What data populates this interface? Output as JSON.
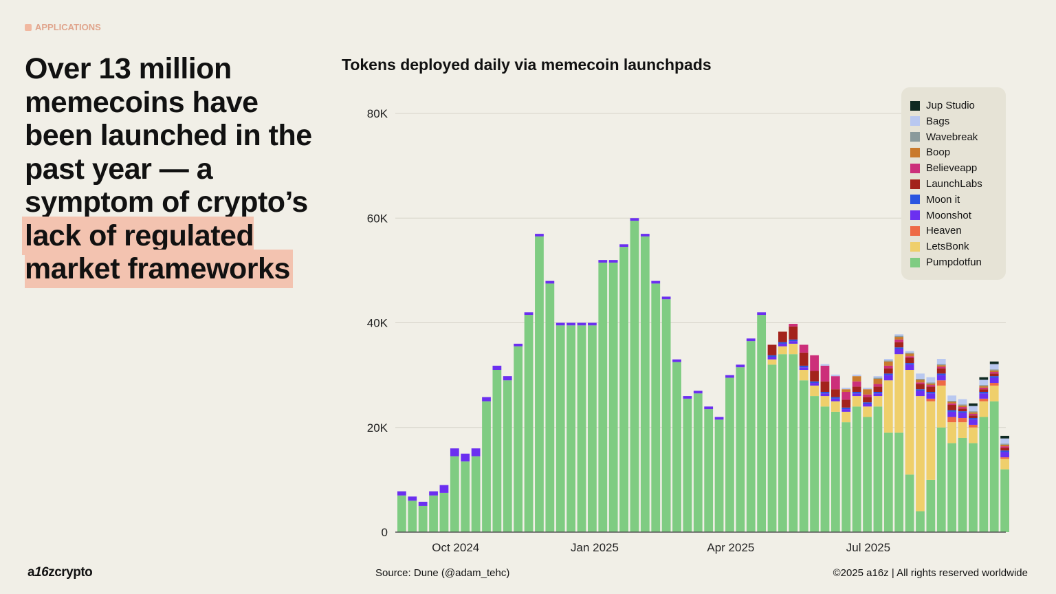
{
  "section_label": "APPLICATIONS",
  "headline": {
    "plain": "Over 13 million memecoins have been launched in the past year — a symptom of crypto’s ",
    "highlight": "lack of regulated market frameworks"
  },
  "footer": {
    "source": "Source: Dune (@adam_tehc)",
    "copyright": "©2025 a16z | All rights reserved worldwide",
    "logo": "a16zcrypto"
  },
  "chart_data": {
    "type": "bar",
    "stacked": true,
    "granularity": "weekly (approximate)",
    "title": "Tokens deployed daily via memecoin launchpads",
    "xlabel": "",
    "ylabel": "",
    "ylim": [
      0,
      80000
    ],
    "yticks": [
      0,
      20000,
      40000,
      60000,
      80000
    ],
    "ytick_labels": [
      "0",
      "20K",
      "40K",
      "60K",
      "80K"
    ],
    "xticks": [
      "2024-10-01",
      "2025-01-01",
      "2025-04-01",
      "2025-07-01"
    ],
    "xtick_labels": [
      "Oct 2024",
      "Jan 2025",
      "Apr 2025",
      "Jul 2025"
    ],
    "xlim": [
      "2024-08-23",
      "2025-09-30"
    ],
    "grid": "horizontal",
    "legend_position": "top-right",
    "x": [
      "2024-08-23",
      "2024-08-30",
      "2024-09-06",
      "2024-09-13",
      "2024-09-20",
      "2024-09-27",
      "2024-10-04",
      "2024-10-11",
      "2024-10-18",
      "2024-10-25",
      "2024-11-01",
      "2024-11-08",
      "2024-11-15",
      "2024-11-22",
      "2024-11-29",
      "2024-12-06",
      "2024-12-13",
      "2024-12-20",
      "2024-12-27",
      "2025-01-03",
      "2025-01-10",
      "2025-01-17",
      "2025-01-24",
      "2025-01-31",
      "2025-02-07",
      "2025-02-14",
      "2025-02-21",
      "2025-02-28",
      "2025-03-07",
      "2025-03-14",
      "2025-03-21",
      "2025-03-28",
      "2025-04-04",
      "2025-04-11",
      "2025-04-18",
      "2025-04-25",
      "2025-05-02",
      "2025-05-09",
      "2025-05-16",
      "2025-05-23",
      "2025-05-30",
      "2025-06-06",
      "2025-06-13",
      "2025-06-20",
      "2025-06-27",
      "2025-07-04",
      "2025-07-11",
      "2025-07-18",
      "2025-07-25",
      "2025-08-01",
      "2025-08-08",
      "2025-08-15",
      "2025-08-22",
      "2025-08-29",
      "2025-09-05",
      "2025-09-12",
      "2025-09-19",
      "2025-09-26"
    ],
    "units": "thousands of tokens",
    "series": [
      {
        "name": "Pumpdotfun",
        "color": "#7fcc82",
        "values": [
          7,
          6,
          5,
          7,
          7.5,
          14.5,
          13.5,
          14.5,
          25,
          31,
          29,
          35.5,
          41.5,
          56.5,
          47.5,
          39.5,
          39.5,
          39.5,
          39.5,
          51.5,
          51.5,
          54.5,
          59.5,
          56.5,
          47.5,
          44.5,
          32.5,
          25.5,
          26.5,
          23.5,
          21.5,
          29.5,
          31.5,
          36.5,
          41.5,
          32,
          34,
          34,
          29,
          26,
          24,
          23,
          21,
          24,
          22,
          24,
          19,
          19,
          11,
          4,
          10,
          20,
          17,
          18,
          17,
          22,
          25,
          12
        ]
      },
      {
        "name": "LetsBonk",
        "color": "#efcf6b",
        "values": [
          0,
          0,
          0,
          0,
          0,
          0,
          0,
          0,
          0,
          0,
          0,
          0,
          0,
          0,
          0,
          0,
          0,
          0,
          0,
          0,
          0,
          0,
          0,
          0,
          0,
          0,
          0,
          0,
          0,
          0,
          0,
          0,
          0,
          0,
          0,
          1,
          1.5,
          2,
          2,
          2,
          2,
          2,
          2,
          2,
          2,
          2,
          10,
          15,
          20,
          22,
          15,
          8,
          4,
          3,
          3,
          3,
          3,
          2
        ]
      },
      {
        "name": "Heaven",
        "color": "#ee6a45",
        "values": [
          0,
          0,
          0,
          0,
          0,
          0,
          0,
          0,
          0,
          0,
          0,
          0,
          0,
          0,
          0,
          0,
          0,
          0,
          0,
          0,
          0,
          0,
          0,
          0,
          0,
          0,
          0,
          0,
          0,
          0,
          0,
          0,
          0,
          0,
          0,
          0,
          0,
          0,
          0,
          0,
          0,
          0,
          0,
          0,
          0,
          0,
          0,
          0,
          0,
          0,
          0.5,
          1,
          1,
          0.8,
          0.5,
          0.5,
          0.5,
          0.3
        ]
      },
      {
        "name": "Moonshot",
        "color": "#6b2ff0",
        "values": [
          0.8,
          0.8,
          0.8,
          0.8,
          1.5,
          1.5,
          1.5,
          1.5,
          0.8,
          0.8,
          0.8,
          0.5,
          0.5,
          0.5,
          0.5,
          0.5,
          0.5,
          0.5,
          0.5,
          0.5,
          0.5,
          0.5,
          0.5,
          0.5,
          0.5,
          0.5,
          0.5,
          0.5,
          0.5,
          0.5,
          0.5,
          0.5,
          0.5,
          0.5,
          0.5,
          0.5,
          0.5,
          0.5,
          0.5,
          0.5,
          0.5,
          0.5,
          0.5,
          0.5,
          0.5,
          0.5,
          1,
          1,
          1,
          1,
          1,
          1,
          1,
          1,
          1,
          1,
          1,
          1
        ]
      },
      {
        "name": "Moon it",
        "color": "#2a55e0",
        "values": [
          0,
          0,
          0,
          0,
          0,
          0,
          0,
          0,
          0,
          0,
          0,
          0,
          0,
          0,
          0,
          0,
          0,
          0,
          0,
          0,
          0,
          0,
          0,
          0,
          0,
          0,
          0,
          0,
          0,
          0,
          0,
          0,
          0,
          0,
          0,
          0.3,
          0.3,
          0.3,
          0.3,
          0.3,
          0.3,
          0.3,
          0.3,
          0.3,
          0.3,
          0.3,
          0.3,
          0.3,
          0.3,
          0.3,
          0.3,
          0.3,
          0.3,
          0.3,
          0.3,
          0.3,
          0.3,
          0.3
        ]
      },
      {
        "name": "LaunchLabs",
        "color": "#a3231c",
        "values": [
          0,
          0,
          0,
          0,
          0,
          0,
          0,
          0,
          0,
          0,
          0,
          0,
          0,
          0,
          0,
          0,
          0,
          0,
          0,
          0,
          0,
          0,
          0,
          0,
          0,
          0,
          0,
          0,
          0,
          0,
          0,
          0,
          0,
          0,
          0,
          2,
          2,
          2.5,
          2.5,
          2,
          2,
          1.5,
          1.5,
          1,
          1,
          1,
          1,
          1,
          1,
          1,
          1,
          1,
          1,
          0.5,
          0.5,
          0.5,
          0.5,
          0.5
        ]
      },
      {
        "name": "Believeapp",
        "color": "#cc2f7a",
        "values": [
          0,
          0,
          0,
          0,
          0,
          0,
          0,
          0,
          0,
          0,
          0,
          0,
          0,
          0,
          0,
          0,
          0,
          0,
          0,
          0,
          0,
          0,
          0,
          0,
          0,
          0,
          0,
          0,
          0,
          0,
          0,
          0,
          0,
          0,
          0,
          0,
          0,
          0.5,
          1.5,
          3,
          3,
          2.5,
          1.5,
          1,
          0.5,
          0.5,
          0.5,
          0.5,
          0.3,
          0.3,
          0.3,
          0.3,
          0.3,
          0.3,
          0.3,
          0.3,
          0.3,
          0.3
        ]
      },
      {
        "name": "Boop",
        "color": "#c97a2c",
        "values": [
          0,
          0,
          0,
          0,
          0,
          0,
          0,
          0,
          0,
          0,
          0,
          0,
          0,
          0,
          0,
          0,
          0,
          0,
          0,
          0,
          0,
          0,
          0,
          0,
          0,
          0,
          0,
          0,
          0,
          0,
          0,
          0,
          0,
          0,
          0,
          0,
          0,
          0,
          0,
          0,
          0,
          0,
          0.5,
          1,
          1,
          1,
          0.8,
          0.5,
          0.5,
          0.5,
          0.3,
          0.3,
          0.3,
          0.3,
          0.3,
          0.3,
          0.3,
          0.3
        ]
      },
      {
        "name": "Wavebreak",
        "color": "#8a9a9c",
        "values": [
          0,
          0,
          0,
          0,
          0,
          0,
          0,
          0,
          0,
          0,
          0,
          0,
          0,
          0,
          0,
          0,
          0,
          0,
          0,
          0,
          0,
          0,
          0,
          0,
          0,
          0,
          0,
          0,
          0,
          0,
          0,
          0,
          0,
          0,
          0,
          0,
          0,
          0,
          0,
          0,
          0,
          0,
          0,
          0,
          0,
          0.2,
          0.2,
          0.2,
          0.2,
          0.2,
          0.2,
          0.2,
          0.2,
          0.2,
          0.2,
          0.2,
          0.2,
          0.2
        ]
      },
      {
        "name": "Bags",
        "color": "#b9c8f0",
        "values": [
          0,
          0,
          0,
          0,
          0,
          0,
          0,
          0,
          0,
          0,
          0,
          0,
          0,
          0,
          0,
          0,
          0,
          0,
          0,
          0,
          0,
          0,
          0,
          0,
          0,
          0,
          0,
          0,
          0,
          0,
          0,
          0,
          0,
          0,
          0,
          0,
          0,
          0,
          0,
          0,
          0.3,
          0.3,
          0.3,
          0.3,
          0.3,
          0.3,
          0.3,
          0.3,
          0.3,
          1,
          1,
          1,
          1,
          1,
          1,
          1,
          1,
          1
        ]
      },
      {
        "name": "Jup Studio",
        "color": "#0f2a22",
        "values": [
          0,
          0,
          0,
          0,
          0,
          0,
          0,
          0,
          0,
          0,
          0,
          0,
          0,
          0,
          0,
          0,
          0,
          0,
          0,
          0,
          0,
          0,
          0,
          0,
          0,
          0,
          0,
          0,
          0,
          0,
          0,
          0,
          0,
          0,
          0,
          0,
          0,
          0,
          0,
          0,
          0,
          0,
          0,
          0,
          0,
          0,
          0,
          0,
          0,
          0,
          0,
          0,
          0,
          0,
          0.5,
          0.5,
          0.5,
          0.5
        ]
      }
    ]
  }
}
